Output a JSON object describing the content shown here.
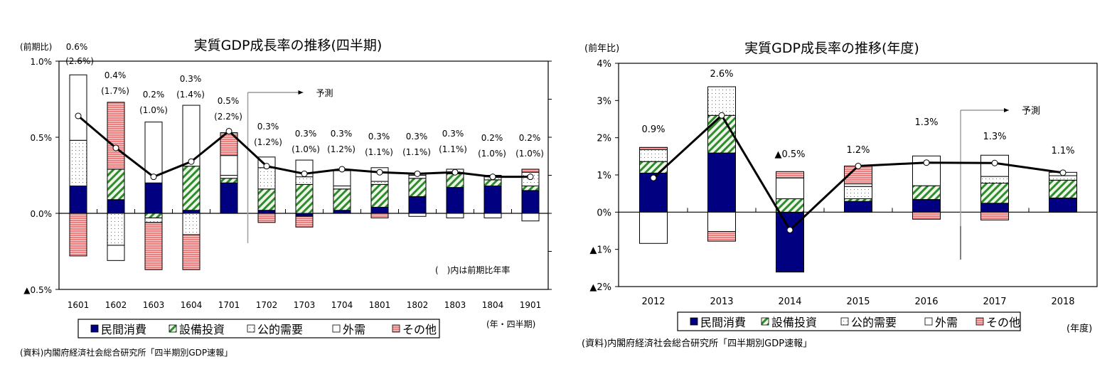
{
  "colors": {
    "private_consumption": "#000080",
    "capex_hatch": "#2e8b2e",
    "capex_bg": "#e8f5e0",
    "public_dots": "#555555",
    "external": "#ffffff",
    "other": "#f08080",
    "line": "#000000",
    "forecast_divider": "#a0a0a0"
  },
  "legend": {
    "items": [
      {
        "key": "private_consumption",
        "label": "民間消費"
      },
      {
        "key": "capex",
        "label": "設備投資"
      },
      {
        "key": "public",
        "label": "公的需要"
      },
      {
        "key": "external",
        "label": "外需"
      },
      {
        "key": "other",
        "label": "その他"
      }
    ]
  },
  "chart_data": [
    {
      "type": "bar",
      "stacked": true,
      "title": "実質GDP成長率の推移(四半期)",
      "ylabel": "(前期比)",
      "xlabel": "(年・四半期)",
      "note": "(　)内は前期比年率",
      "source": "(資料)内閣府経済社会総合研究所「四半期別GDP速報」",
      "forecast_label": "予測",
      "forecast_starts_after": "1701",
      "ylim": [
        -0.5,
        1.0
      ],
      "yticks": [
        {
          "value": 1.0,
          "label": "1.0%"
        },
        {
          "value": 0.5,
          "label": "0.5%"
        },
        {
          "value": 0.0,
          "label": "0.0%"
        },
        {
          "value": -0.5,
          "label": "▲0.5%"
        }
      ],
      "categories": [
        "1601",
        "1602",
        "1603",
        "1604",
        "1701",
        "1702",
        "1703",
        "1704",
        "1801",
        "1802",
        "1803",
        "1804",
        "1901"
      ],
      "series": [
        {
          "name": "民間消費",
          "key": "private_consumption",
          "values": [
            0.18,
            0.09,
            0.2,
            0.02,
            0.2,
            0.02,
            -0.02,
            0.02,
            0.04,
            0.11,
            0.17,
            0.18,
            0.15
          ]
        },
        {
          "name": "設備投資",
          "key": "capex",
          "values": [
            0.0,
            0.2,
            -0.03,
            0.29,
            0.03,
            0.14,
            0.19,
            0.14,
            0.15,
            0.12,
            0.09,
            0.04,
            0.03
          ]
        },
        {
          "name": "公的需要",
          "key": "public",
          "values": [
            0.3,
            -0.21,
            -0.03,
            -0.14,
            0.02,
            0.14,
            0.05,
            0.02,
            0.02,
            0.02,
            0.03,
            0.02,
            0.09
          ]
        },
        {
          "name": "外需",
          "key": "external",
          "values": [
            0.43,
            -0.1,
            0.4,
            0.4,
            0.13,
            0.07,
            0.11,
            0.1,
            0.09,
            -0.02,
            -0.03,
            -0.03,
            -0.05
          ]
        },
        {
          "name": "その他",
          "key": "other",
          "values": [
            -0.28,
            0.44,
            -0.31,
            -0.23,
            0.15,
            -0.06,
            -0.07,
            0.0,
            -0.03,
            0.01,
            0.0,
            0.01,
            0.02
          ]
        }
      ],
      "line": {
        "name": "実質GDP成長率",
        "values": [
          0.64,
          0.43,
          0.24,
          0.34,
          0.54,
          0.31,
          0.26,
          0.29,
          0.27,
          0.26,
          0.27,
          0.24,
          0.24
        ]
      },
      "labels": [
        {
          "qoq": "0.6%",
          "annualized": "(2.6%)"
        },
        {
          "qoq": "0.4%",
          "annualized": "(1.7%)"
        },
        {
          "qoq": "0.2%",
          "annualized": "(1.0%)"
        },
        {
          "qoq": "0.3%",
          "annualized": "(1.4%)"
        },
        {
          "qoq": "0.5%",
          "annualized": "(2.2%)"
        },
        {
          "qoq": "0.3%",
          "annualized": "(1.2%)"
        },
        {
          "qoq": "0.3%",
          "annualized": "(1.0%)"
        },
        {
          "qoq": "0.3%",
          "annualized": "(1.2%)"
        },
        {
          "qoq": "0.3%",
          "annualized": "(1.1%)"
        },
        {
          "qoq": "0.3%",
          "annualized": "(1.1%)"
        },
        {
          "qoq": "0.3%",
          "annualized": "(1.1%)"
        },
        {
          "qoq": "0.2%",
          "annualized": "(1.0%)"
        },
        {
          "qoq": "0.2%",
          "annualized": "(1.0%)"
        }
      ]
    },
    {
      "type": "bar",
      "stacked": true,
      "title": "実質GDP成長率の推移(年度)",
      "ylabel": "(前年比)",
      "xlabel": "(年度)",
      "source": "(資料)内閣府経済社会総合研究所「四半期別GDP速報」",
      "forecast_label": "予測",
      "forecast_starts_after": "2016",
      "ylim": [
        -2,
        4
      ],
      "yticks": [
        {
          "value": 4,
          "label": "4%"
        },
        {
          "value": 3,
          "label": "3%"
        },
        {
          "value": 2,
          "label": "2%"
        },
        {
          "value": 1,
          "label": "1%"
        },
        {
          "value": 0,
          "label": "0%"
        },
        {
          "value": -1,
          "label": "▲1%"
        },
        {
          "value": -2,
          "label": "▲2%"
        }
      ],
      "categories": [
        "2012",
        "2013",
        "2014",
        "2015",
        "2016",
        "2017",
        "2018"
      ],
      "series": [
        {
          "name": "民間消費",
          "key": "private_consumption",
          "values": [
            1.05,
            1.59,
            -1.59,
            0.29,
            0.34,
            0.24,
            0.38
          ]
        },
        {
          "name": "設備投資",
          "key": "capex",
          "values": [
            0.31,
            1.01,
            0.36,
            0.07,
            0.37,
            0.54,
            0.48
          ]
        },
        {
          "name": "公的需要",
          "key": "public",
          "values": [
            0.32,
            0.77,
            -0.02,
            0.33,
            0.0,
            0.18,
            0.12
          ]
        },
        {
          "name": "外需",
          "key": "external",
          "values": [
            -0.84,
            -0.52,
            0.56,
            0.07,
            0.8,
            0.57,
            0.09
          ]
        },
        {
          "name": "その他",
          "key": "other",
          "values": [
            0.06,
            -0.26,
            0.17,
            0.48,
            -0.19,
            -0.21,
            0.0
          ]
        }
      ],
      "line": {
        "name": "実質GDP成長率",
        "values": [
          0.92,
          2.6,
          -0.48,
          1.24,
          1.33,
          1.32,
          1.06
        ]
      },
      "labels": [
        {
          "value": "0.9%"
        },
        {
          "value": "2.6%"
        },
        {
          "value": "▲0.5%"
        },
        {
          "value": "1.2%"
        },
        {
          "value": "1.3%"
        },
        {
          "value": "1.3%"
        },
        {
          "value": "1.1%"
        }
      ]
    }
  ]
}
